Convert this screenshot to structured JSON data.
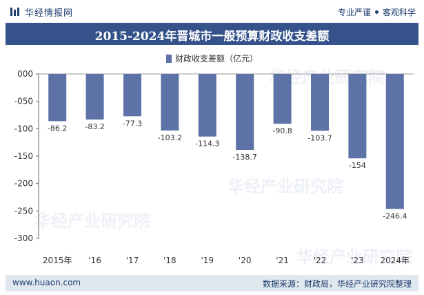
{
  "header": {
    "brand": "华经情报网",
    "tagline_left": "专业严谨",
    "tagline_right": "客观科学"
  },
  "footer": {
    "url": "www.huaon.com",
    "source": "数据来源：财政局，华经产业研究院整理"
  },
  "watermarks": [
    "华经产业研究院",
    "华经产业研究院",
    "华经产业研究院",
    "华经产业研究院"
  ],
  "colors": {
    "bar": "#5d73a8",
    "title_bg": "#35538a",
    "footer_bg": "#e1e7ef"
  },
  "chart_data": {
    "type": "bar",
    "title": "2015-2024年晋城市一般预算财政收支差额",
    "legend": "财政收支差额（亿元）",
    "categories": [
      "2015年",
      "'16",
      "'17",
      "'18",
      "'19",
      "'20",
      "'21",
      "'22",
      "'23",
      "2024年"
    ],
    "values": [
      -86.2,
      -83.2,
      -77.3,
      -103.2,
      -114.3,
      -138.7,
      -90.8,
      -103.7,
      -154,
      -246.4
    ],
    "data_labels": [
      "-86.2",
      "-83.2",
      "-77.3",
      "-103.2",
      "-114.3",
      "-138.7",
      "-90.8",
      "-103.7",
      "-154",
      "-246.4"
    ],
    "yticks": [
      0,
      -50,
      -100,
      -150,
      -200,
      -250,
      -300
    ],
    "ytick_labels": [
      "000",
      "-050",
      "-100",
      "-150",
      "-200",
      "-250",
      "-300"
    ],
    "ylim": [
      -300,
      0
    ],
    "grid": false,
    "legend_position": "top-center"
  }
}
